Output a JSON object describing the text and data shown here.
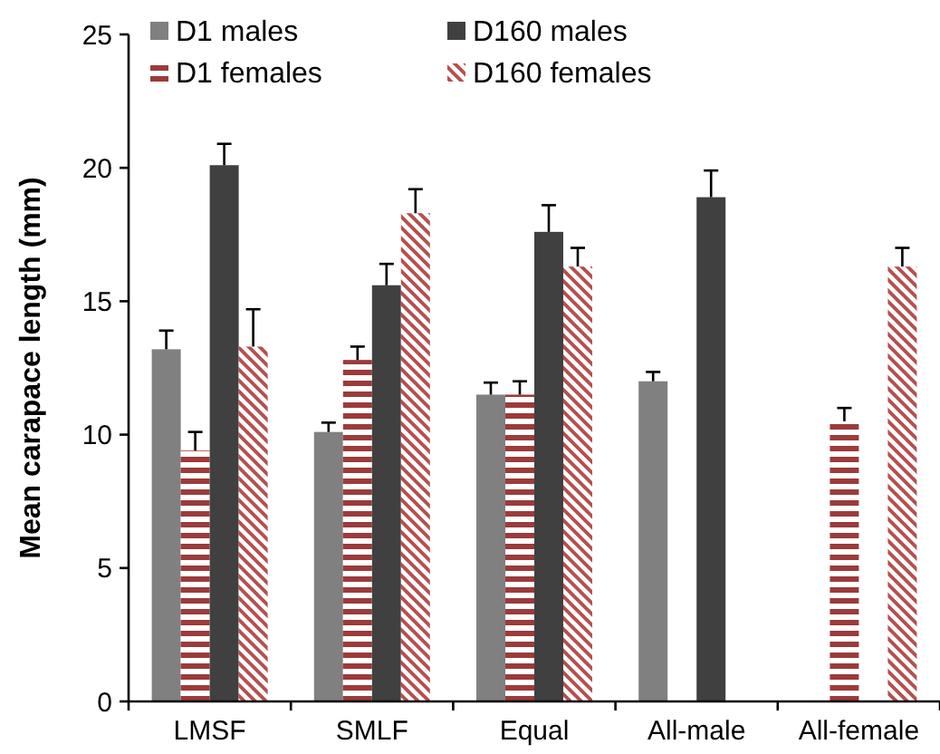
{
  "chart_data": {
    "type": "bar",
    "ylabel": "Mean carapace length (mm)",
    "categories": [
      "LMSF",
      "SMLF",
      "Equal",
      "All-male",
      "All-female"
    ],
    "ylim": [
      0,
      25
    ],
    "yticks": [
      0,
      5,
      10,
      15,
      20,
      25
    ],
    "legend": "top",
    "grid": false,
    "series": [
      {
        "name": "D1 males",
        "color": "#808080",
        "values": [
          13.2,
          10.1,
          11.5,
          12.0,
          null
        ],
        "errors": [
          0.7,
          0.35,
          0.45,
          0.35,
          null
        ]
      },
      {
        "name": "D1 females",
        "color": "#9b3b3b",
        "values": [
          9.4,
          12.8,
          11.5,
          null,
          10.5
        ],
        "errors": [
          0.7,
          0.5,
          0.5,
          null,
          0.5
        ]
      },
      {
        "name": "D160 males",
        "color": "#404040",
        "values": [
          20.1,
          15.6,
          17.6,
          18.9,
          null
        ],
        "errors": [
          0.8,
          0.8,
          1.0,
          1.0,
          null
        ]
      },
      {
        "name": "D160 females",
        "color": "#b5504f",
        "values": [
          13.3,
          18.3,
          16.3,
          null,
          16.3
        ],
        "errors": [
          1.4,
          0.9,
          0.7,
          null,
          0.7
        ]
      }
    ]
  }
}
